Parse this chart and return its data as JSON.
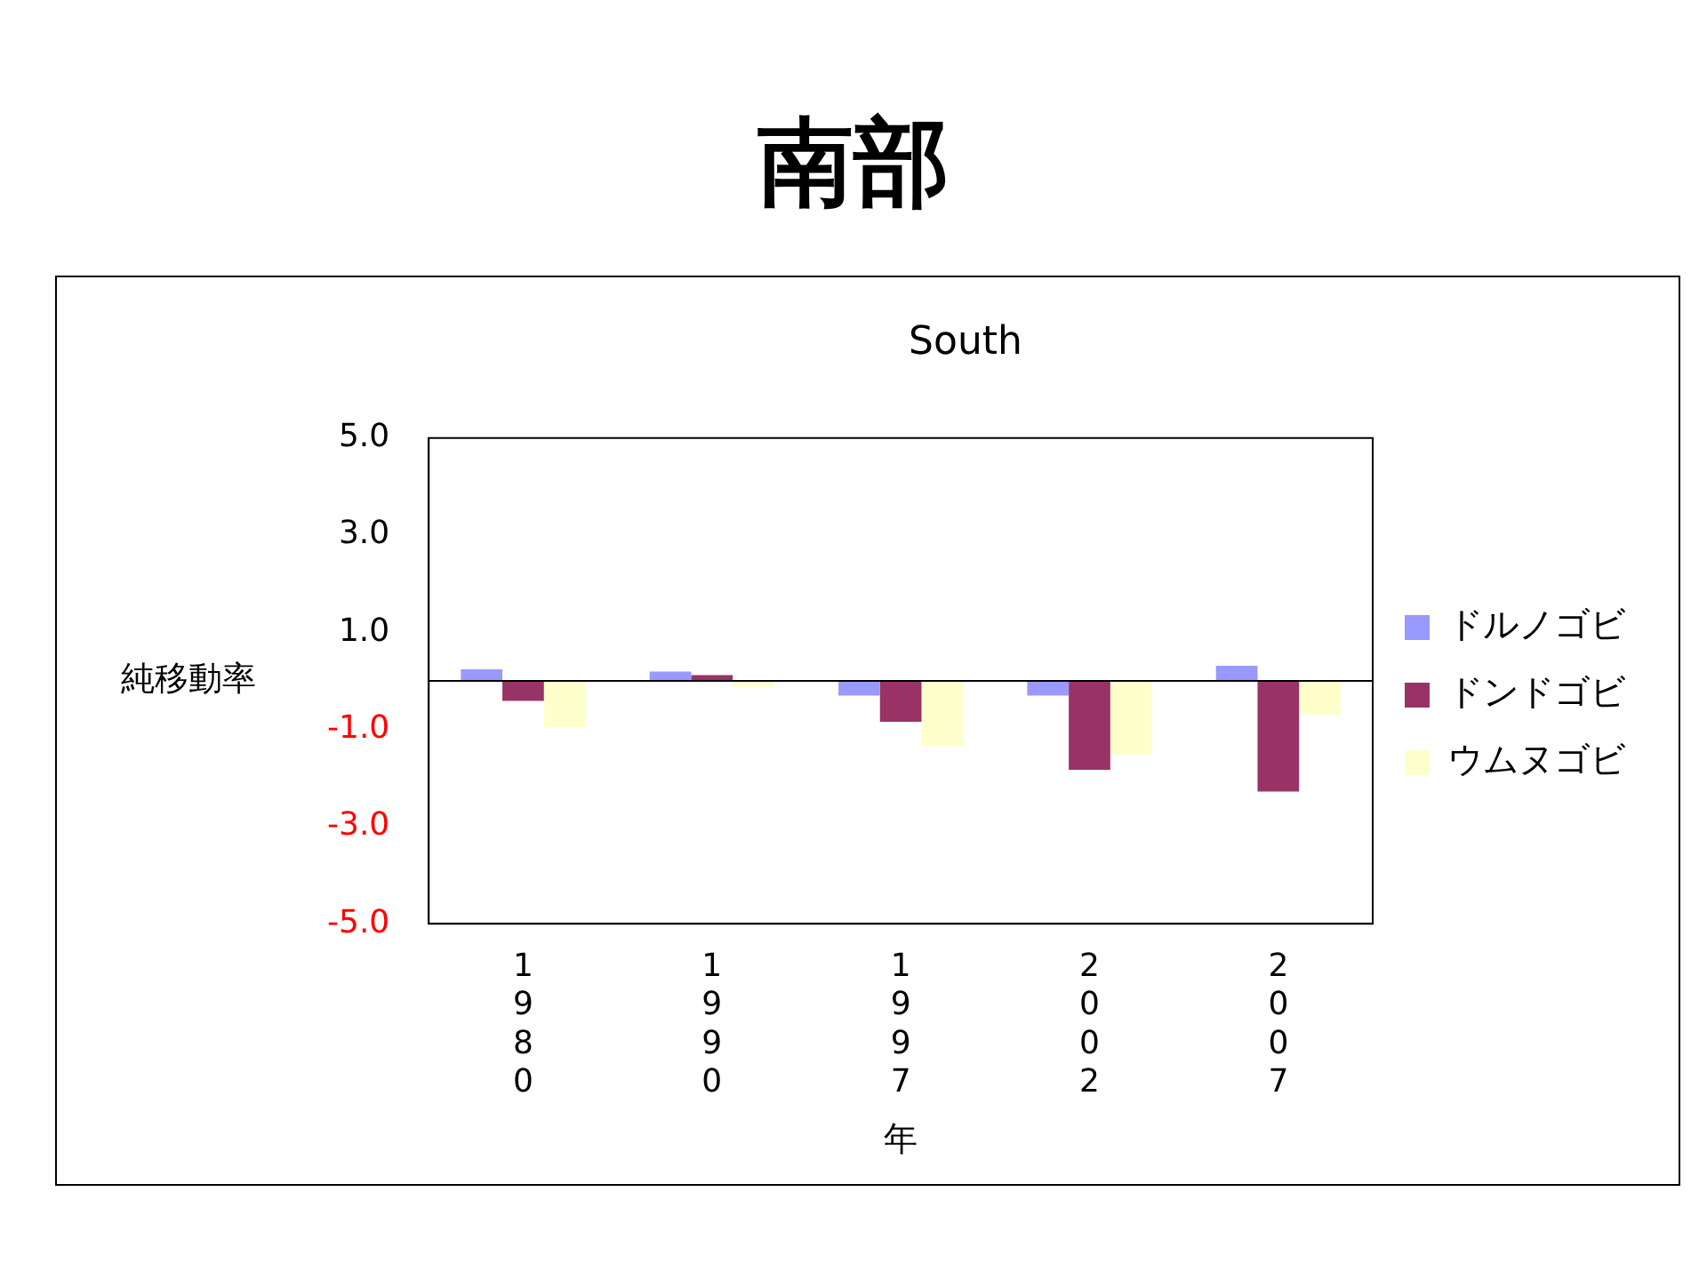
{
  "chart_data": {
    "type": "bar",
    "title": "南部",
    "subtitle": "South",
    "xlabel": "年",
    "ylabel": "純移動率",
    "categories": [
      "1980",
      "1990",
      "1997",
      "2002",
      "2007"
    ],
    "series": [
      {
        "name": "ドルノゴビ",
        "color": "#9999ff",
        "values": [
          0.24,
          0.19,
          -0.3,
          -0.3,
          0.31
        ]
      },
      {
        "name": "ドンドゴビ",
        "color": "#993366",
        "values": [
          -0.41,
          0.12,
          -0.84,
          -1.83,
          -2.28
        ]
      },
      {
        "name": "ウムヌゴビ",
        "color": "#ffffcc",
        "values": [
          -0.95,
          -0.12,
          -1.34,
          -1.52,
          -0.69
        ]
      }
    ],
    "ylim": [
      -5.0,
      5.0
    ],
    "yticks": [
      {
        "value": -5,
        "label": "-5.0"
      },
      {
        "value": -3,
        "label": "-3.0"
      },
      {
        "value": -1,
        "label": "-1.0"
      },
      {
        "value": 1,
        "label": "1.0"
      },
      {
        "value": 3,
        "label": "3.0"
      },
      {
        "value": 5,
        "label": "5.0"
      }
    ],
    "grid": false,
    "legend": "right"
  }
}
